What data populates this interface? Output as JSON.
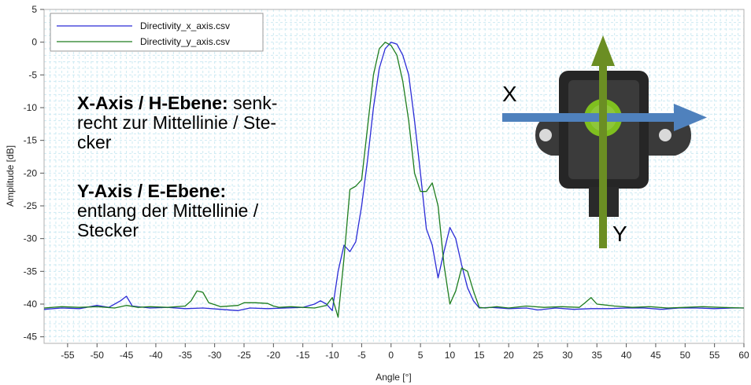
{
  "chart_data": {
    "type": "line",
    "xlabel": "Angle [°]",
    "ylabel": "Amplitude [dB]",
    "xlim": [
      -59,
      60
    ],
    "ylim": [
      -46,
      5
    ],
    "x_ticks": [
      -55,
      -50,
      -45,
      -40,
      -35,
      -30,
      -25,
      -20,
      -15,
      -10,
      -5,
      0,
      5,
      10,
      15,
      20,
      25,
      30,
      35,
      40,
      45,
      50,
      55,
      60
    ],
    "y_ticks": [
      5,
      0,
      -5,
      -10,
      -15,
      -20,
      -25,
      -30,
      -35,
      -40,
      -45
    ],
    "grid": true,
    "legend_position": "top-left",
    "series": [
      {
        "name": "Directivity_x_axis.csv",
        "color": "#2b2bd6",
        "x": [
          -59,
          -56,
          -53,
          -50,
          -48,
          -46,
          -45,
          -44,
          -41,
          -38,
          -35,
          -32,
          -29,
          -26,
          -24,
          -21,
          -18,
          -15,
          -13,
          -12,
          -11,
          -10,
          -9,
          -8,
          -7,
          -6,
          -5,
          -4,
          -3,
          -2,
          -1,
          0,
          1,
          2,
          3,
          4,
          5,
          6,
          7,
          8,
          9,
          10,
          11,
          12,
          13,
          14,
          15,
          17,
          20,
          23,
          25,
          28,
          31,
          34,
          37,
          40,
          43,
          46,
          49,
          52,
          55,
          58,
          60
        ],
        "y": [
          -40.8,
          -40.6,
          -40.7,
          -40.2,
          -40.5,
          -39.5,
          -38.8,
          -40.3,
          -40.6,
          -40.5,
          -40.7,
          -40.6,
          -40.8,
          -41.0,
          -40.6,
          -40.7,
          -40.6,
          -40.5,
          -40.0,
          -39.5,
          -40.0,
          -41.0,
          -35.0,
          -31.0,
          -32.0,
          -30.5,
          -25.0,
          -18.0,
          -10.0,
          -4.0,
          -1.0,
          0.0,
          -0.3,
          -2.0,
          -5.0,
          -12.0,
          -20.0,
          -28.5,
          -31.0,
          -36.0,
          -32.0,
          -28.3,
          -30.0,
          -34.0,
          -37.5,
          -39.5,
          -40.6,
          -40.5,
          -40.7,
          -40.6,
          -40.9,
          -40.6,
          -40.8,
          -40.7,
          -40.7,
          -40.6,
          -40.6,
          -40.8,
          -40.6,
          -40.6,
          -40.7,
          -40.6,
          -40.6
        ]
      },
      {
        "name": "Directivity_y_axis.csv",
        "color": "#1e7d1e",
        "x": [
          -59,
          -56,
          -53,
          -50,
          -47,
          -45,
          -43,
          -41,
          -38,
          -35,
          -34,
          -33,
          -32,
          -31,
          -29,
          -26,
          -25,
          -23,
          -21,
          -20,
          -19,
          -17,
          -15,
          -13,
          -11,
          -10,
          -9,
          -8,
          -7,
          -6,
          -5,
          -4,
          -3,
          -2,
          -1,
          0,
          1,
          2,
          3,
          4,
          5,
          6,
          7,
          8,
          9,
          10,
          11,
          12,
          13,
          14,
          15,
          16,
          18,
          20,
          23,
          26,
          29,
          32,
          33,
          34,
          35,
          38,
          41,
          44,
          47,
          50,
          53,
          56,
          60
        ],
        "y": [
          -40.6,
          -40.4,
          -40.5,
          -40.4,
          -40.6,
          -40.2,
          -40.5,
          -40.4,
          -40.5,
          -40.3,
          -39.5,
          -38.0,
          -38.2,
          -39.8,
          -40.4,
          -40.2,
          -39.8,
          -39.8,
          -39.9,
          -40.3,
          -40.5,
          -40.4,
          -40.5,
          -40.6,
          -40.2,
          -39.0,
          -42.0,
          -33.0,
          -22.5,
          -22.0,
          -21.0,
          -13.0,
          -5.0,
          -1.0,
          0.0,
          -0.5,
          -2.0,
          -6.0,
          -12.0,
          -20.0,
          -22.8,
          -22.8,
          -21.5,
          -25.0,
          -34.0,
          -40.0,
          -38.0,
          -34.5,
          -35.0,
          -38.0,
          -40.5,
          -40.6,
          -40.4,
          -40.6,
          -40.3,
          -40.5,
          -40.4,
          -40.5,
          -39.8,
          -39.0,
          -40.0,
          -40.3,
          -40.5,
          -40.4,
          -40.6,
          -40.5,
          -40.4,
          -40.5,
          -40.6
        ]
      }
    ]
  },
  "annotations": {
    "x_axis_title": "X-Axis / H-Ebene:",
    "x_axis_desc_1": " senk-",
    "x_axis_desc_2": "recht zur Mittellinie / Ste-",
    "x_axis_desc_3": "cker",
    "y_axis_title": "Y-Axis / E-Ebene:",
    "y_axis_desc_1": "entlang der Mittellinie /",
    "y_axis_desc_2": "Stecker"
  },
  "sensor_diagram": {
    "x_arrow_label": "X",
    "y_arrow_label": "Y",
    "x_arrow_color": "#4f81bd",
    "y_arrow_color": "#6b8e23",
    "lens_color": "#7fbf1f"
  }
}
